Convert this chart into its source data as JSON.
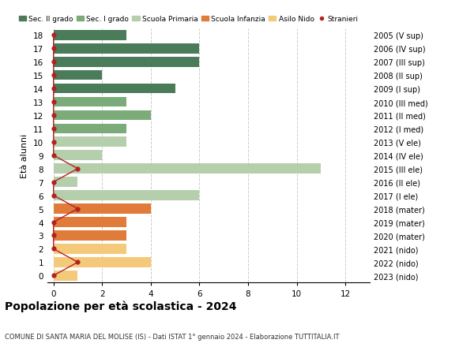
{
  "ages": [
    18,
    17,
    16,
    15,
    14,
    13,
    12,
    11,
    10,
    9,
    8,
    7,
    6,
    5,
    4,
    3,
    2,
    1,
    0
  ],
  "years": [
    "2005 (V sup)",
    "2006 (IV sup)",
    "2007 (III sup)",
    "2008 (II sup)",
    "2009 (I sup)",
    "2010 (III med)",
    "2011 (II med)",
    "2012 (I med)",
    "2013 (V ele)",
    "2014 (IV ele)",
    "2015 (III ele)",
    "2016 (II ele)",
    "2017 (I ele)",
    "2018 (mater)",
    "2019 (mater)",
    "2020 (mater)",
    "2021 (nido)",
    "2022 (nido)",
    "2023 (nido)"
  ],
  "bar_values": [
    3,
    6,
    6,
    2,
    5,
    3,
    4,
    3,
    3,
    2,
    11,
    1,
    6,
    4,
    3,
    3,
    3,
    4,
    1
  ],
  "stranieri_values": [
    0,
    0,
    0,
    0,
    0,
    0,
    0,
    0,
    0,
    0,
    1,
    0,
    0,
    1,
    0,
    0,
    0,
    1,
    0
  ],
  "bar_colors": {
    "Sec. II grado": "#4a7c59",
    "Sec. I grado": "#7aab78",
    "Scuola Primaria": "#b5ceab",
    "Scuola Infanzia": "#e07b39",
    "Asilo Nido": "#f5c97a"
  },
  "age_category": {
    "18": "Sec. II grado",
    "17": "Sec. II grado",
    "16": "Sec. II grado",
    "15": "Sec. II grado",
    "14": "Sec. II grado",
    "13": "Sec. I grado",
    "12": "Sec. I grado",
    "11": "Sec. I grado",
    "10": "Scuola Primaria",
    "9": "Scuola Primaria",
    "8": "Scuola Primaria",
    "7": "Scuola Primaria",
    "6": "Scuola Primaria",
    "5": "Scuola Infanzia",
    "4": "Scuola Infanzia",
    "3": "Scuola Infanzia",
    "2": "Asilo Nido",
    "1": "Asilo Nido",
    "0": "Asilo Nido"
  },
  "stranieri_color": "#b22222",
  "title": "Popolazione per età scolastica - 2024",
  "subtitle": "COMUNE DI SANTA MARIA DEL MOLISE (IS) - Dati ISTAT 1° gennaio 2024 - Elaborazione TUTTITALIA.IT",
  "ylabel_left": "Età alunni",
  "xlim": [
    -0.25,
    13
  ],
  "ylim": [
    -0.5,
    18.5
  ],
  "xticks": [
    0,
    2,
    4,
    6,
    8,
    10,
    12
  ],
  "background_color": "#ffffff",
  "grid_color": "#cccccc",
  "legend_items": [
    "Sec. II grado",
    "Sec. I grado",
    "Scuola Primaria",
    "Scuola Infanzia",
    "Asilo Nido",
    "Stranieri"
  ]
}
